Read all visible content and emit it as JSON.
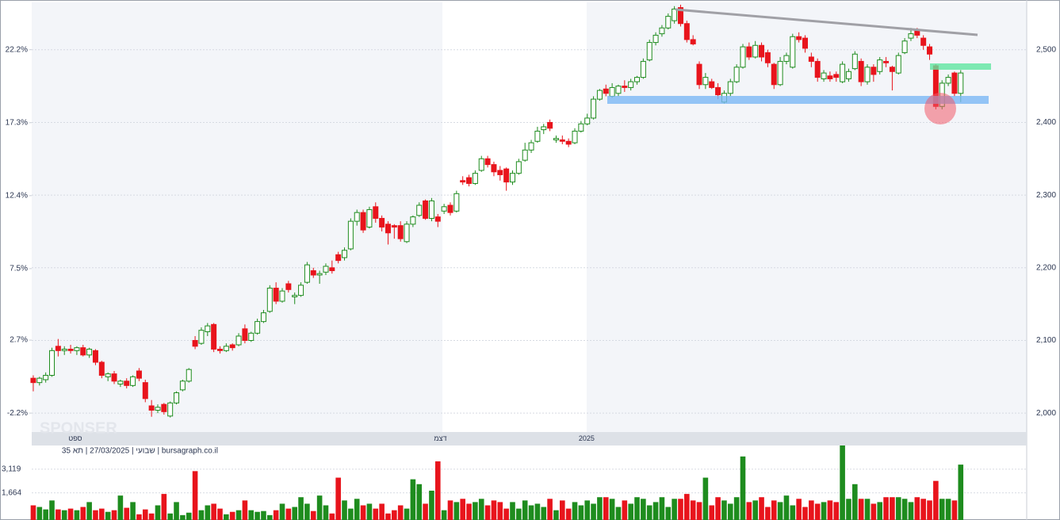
{
  "chart_data": [
    {
      "type": "candlestick",
      "watermark": "SPONSER",
      "xlim": [
        -0.25,
        159.6
      ],
      "xticks": [
        {
          "value": 6.75,
          "label": "ספט"
        },
        {
          "value": 65.4,
          "label": "דצמ"
        },
        {
          "value": 88.9,
          "label": "2025"
        }
      ],
      "ylim": [
        1974,
        2563
      ],
      "yticks": [
        {
          "value": 2000,
          "label": "2,000"
        },
        {
          "value": 2100,
          "label": "2,100"
        },
        {
          "value": 2200,
          "label": "2,200"
        },
        {
          "value": 2300,
          "label": "2,300"
        },
        {
          "value": 2400,
          "label": "2,400"
        },
        {
          "value": 2500,
          "label": "2,500"
        }
      ],
      "y2lim": [
        -3.47,
        25.27
      ],
      "y2ticks": [
        {
          "value": -2.2,
          "label": "-2.2%"
        },
        {
          "value": 2.7,
          "label": "2.7%"
        },
        {
          "value": 7.5,
          "label": "7.5%"
        },
        {
          "value": 12.4,
          "label": "12.4%"
        },
        {
          "value": 17.3,
          "label": "17.3%"
        },
        {
          "value": 22.2,
          "label": "22.2%"
        }
      ],
      "grid": true,
      "up_color": "#1e8c1e",
      "down_color": "#e8141c",
      "candles": [
        [
          2048,
          2052,
          2030,
          2042
        ],
        [
          2042,
          2050,
          2038,
          2048
        ],
        [
          2046,
          2056,
          2042,
          2052
        ],
        [
          2052,
          2090,
          2050,
          2086
        ],
        [
          2092,
          2102,
          2078,
          2086
        ],
        [
          2086,
          2092,
          2080,
          2088
        ],
        [
          2088,
          2094,
          2082,
          2086
        ],
        [
          2086,
          2092,
          2080,
          2090
        ],
        [
          2090,
          2094,
          2078,
          2080
        ],
        [
          2080,
          2090,
          2076,
          2088
        ],
        [
          2086,
          2088,
          2066,
          2070
        ],
        [
          2070,
          2072,
          2048,
          2052
        ],
        [
          2050,
          2056,
          2044,
          2054
        ],
        [
          2054,
          2058,
          2040,
          2044
        ],
        [
          2040,
          2046,
          2036,
          2044
        ],
        [
          2044,
          2048,
          2034,
          2038
        ],
        [
          2038,
          2052,
          2036,
          2050
        ],
        [
          2058,
          2062,
          2044,
          2048
        ],
        [
          2042,
          2046,
          2015,
          2020
        ],
        [
          2010,
          2018,
          1995,
          2004
        ],
        [
          2004,
          2012,
          2000,
          2008
        ],
        [
          2012,
          2014,
          1998,
          2002
        ],
        [
          1996,
          2016,
          1994,
          2014
        ],
        [
          2014,
          2030,
          2012,
          2028
        ],
        [
          2032,
          2046,
          2030,
          2044
        ],
        [
          2044,
          2062,
          2042,
          2060
        ],
        [
          2100,
          2106,
          2088,
          2092
        ],
        [
          2096,
          2118,
          2094,
          2114
        ],
        [
          2112,
          2124,
          2106,
          2120
        ],
        [
          2122,
          2124,
          2084,
          2088
        ],
        [
          2088,
          2092,
          2082,
          2086
        ],
        [
          2086,
          2096,
          2084,
          2092
        ],
        [
          2094,
          2096,
          2086,
          2090
        ],
        [
          2094,
          2110,
          2092,
          2106
        ],
        [
          2116,
          2122,
          2096,
          2100
        ],
        [
          2100,
          2112,
          2098,
          2110
        ],
        [
          2110,
          2130,
          2108,
          2126
        ],
        [
          2126,
          2142,
          2124,
          2138
        ],
        [
          2140,
          2176,
          2138,
          2172
        ],
        [
          2172,
          2180,
          2150,
          2154
        ],
        [
          2154,
          2172,
          2152,
          2168
        ],
        [
          2178,
          2182,
          2166,
          2170
        ],
        [
          2160,
          2166,
          2150,
          2162
        ],
        [
          2162,
          2180,
          2160,
          2176
        ],
        [
          2180,
          2208,
          2178,
          2204
        ],
        [
          2196,
          2200,
          2186,
          2190
        ],
        [
          2190,
          2196,
          2178,
          2192
        ],
        [
          2194,
          2206,
          2190,
          2202
        ],
        [
          2200,
          2210,
          2192,
          2196
        ],
        [
          2218,
          2222,
          2206,
          2210
        ],
        [
          2214,
          2228,
          2210,
          2224
        ],
        [
          2226,
          2268,
          2224,
          2264
        ],
        [
          2264,
          2280,
          2258,
          2276
        ],
        [
          2276,
          2280,
          2248,
          2252
        ],
        [
          2256,
          2284,
          2254,
          2280
        ],
        [
          2284,
          2290,
          2262,
          2268
        ],
        [
          2268,
          2272,
          2250,
          2256
        ],
        [
          2260,
          2264,
          2232,
          2248
        ],
        [
          2258,
          2260,
          2240,
          2256
        ],
        [
          2258,
          2264,
          2236,
          2240
        ],
        [
          2236,
          2264,
          2234,
          2260
        ],
        [
          2260,
          2272,
          2256,
          2270
        ],
        [
          2272,
          2290,
          2270,
          2286
        ],
        [
          2292,
          2294,
          2266,
          2268
        ],
        [
          2268,
          2296,
          2264,
          2292
        ],
        [
          2270,
          2274,
          2256,
          2264
        ],
        [
          2278,
          2288,
          2274,
          2284
        ],
        [
          2286,
          2290,
          2272,
          2276
        ],
        [
          2278,
          2306,
          2276,
          2302
        ],
        [
          2320,
          2326,
          2314,
          2318
        ],
        [
          2324,
          2328,
          2312,
          2316
        ],
        [
          2316,
          2334,
          2314,
          2330
        ],
        [
          2334,
          2354,
          2332,
          2350
        ],
        [
          2350,
          2354,
          2338,
          2342
        ],
        [
          2342,
          2346,
          2326,
          2332
        ],
        [
          2334,
          2340,
          2320,
          2328
        ],
        [
          2336,
          2338,
          2306,
          2318
        ],
        [
          2318,
          2334,
          2314,
          2330
        ],
        [
          2330,
          2350,
          2328,
          2346
        ],
        [
          2348,
          2372,
          2346,
          2362
        ],
        [
          2362,
          2376,
          2358,
          2372
        ],
        [
          2374,
          2394,
          2372,
          2388
        ],
        [
          2390,
          2398,
          2384,
          2394
        ],
        [
          2400,
          2404,
          2388,
          2392
        ],
        [
          2376,
          2382,
          2372,
          2378
        ],
        [
          2376,
          2382,
          2370,
          2374
        ],
        [
          2374,
          2378,
          2366,
          2370
        ],
        [
          2372,
          2392,
          2370,
          2388
        ],
        [
          2388,
          2402,
          2386,
          2398
        ],
        [
          2398,
          2412,
          2396,
          2406
        ],
        [
          2406,
          2436,
          2404,
          2432
        ],
        [
          2432,
          2446,
          2430,
          2444
        ],
        [
          2446,
          2452,
          2436,
          2440
        ],
        [
          2436,
          2454,
          2434,
          2448
        ],
        [
          2440,
          2452,
          2436,
          2450
        ],
        [
          2450,
          2458,
          2442,
          2448
        ],
        [
          2448,
          2460,
          2444,
          2456
        ],
        [
          2456,
          2464,
          2452,
          2462
        ],
        [
          2462,
          2488,
          2460,
          2484
        ],
        [
          2486,
          2514,
          2484,
          2510
        ],
        [
          2510,
          2524,
          2506,
          2520
        ],
        [
          2522,
          2534,
          2518,
          2530
        ],
        [
          2530,
          2550,
          2528,
          2546
        ],
        [
          2540,
          2560,
          2536,
          2556
        ],
        [
          2558,
          2562,
          2532,
          2536
        ],
        [
          2536,
          2540,
          2510,
          2514
        ],
        [
          2514,
          2520,
          2506,
          2508
        ],
        [
          2480,
          2484,
          2446,
          2452
        ],
        [
          2452,
          2468,
          2446,
          2462
        ],
        [
          2456,
          2460,
          2446,
          2448
        ],
        [
          2448,
          2454,
          2432,
          2438
        ],
        [
          2428,
          2444,
          2426,
          2440
        ],
        [
          2440,
          2460,
          2436,
          2456
        ],
        [
          2456,
          2480,
          2454,
          2476
        ],
        [
          2476,
          2508,
          2474,
          2504
        ],
        [
          2504,
          2510,
          2486,
          2490
        ],
        [
          2490,
          2512,
          2488,
          2506
        ],
        [
          2506,
          2510,
          2484,
          2490
        ],
        [
          2496,
          2500,
          2476,
          2482
        ],
        [
          2480,
          2482,
          2446,
          2452
        ],
        [
          2452,
          2490,
          2450,
          2484
        ],
        [
          2484,
          2496,
          2480,
          2492
        ],
        [
          2476,
          2522,
          2474,
          2518
        ],
        [
          2518,
          2524,
          2510,
          2514
        ],
        [
          2516,
          2520,
          2496,
          2502
        ],
        [
          2490,
          2496,
          2476,
          2484
        ],
        [
          2484,
          2488,
          2456,
          2462
        ],
        [
          2460,
          2472,
          2456,
          2468
        ],
        [
          2464,
          2470,
          2456,
          2460
        ],
        [
          2466,
          2470,
          2456,
          2462
        ],
        [
          2456,
          2484,
          2454,
          2480
        ],
        [
          2460,
          2474,
          2456,
          2470
        ],
        [
          2474,
          2498,
          2472,
          2494
        ],
        [
          2484,
          2488,
          2450,
          2456
        ],
        [
          2456,
          2480,
          2452,
          2476
        ],
        [
          2476,
          2480,
          2456,
          2466
        ],
        [
          2470,
          2490,
          2466,
          2486
        ],
        [
          2484,
          2490,
          2476,
          2482
        ],
        [
          2476,
          2478,
          2444,
          2470
        ],
        [
          2468,
          2496,
          2466,
          2492
        ],
        [
          2496,
          2516,
          2494,
          2512
        ],
        [
          2516,
          2530,
          2512,
          2522
        ],
        [
          2528,
          2530,
          2516,
          2520
        ],
        [
          2516,
          2520,
          2500,
          2506
        ],
        [
          2504,
          2508,
          2486,
          2494
        ],
        [
          2478,
          2480,
          2418,
          2422
        ],
        [
          2422,
          2458,
          2418,
          2454
        ],
        [
          2454,
          2466,
          2450,
          2462
        ],
        [
          2468,
          2470,
          2436,
          2440
        ],
        [
          2440,
          2472,
          2428,
          2468
        ]
      ]
    },
    {
      "type": "bar",
      "caption": "שבועי | 27/03/2025 | תא 35 | bursagraph.co.il",
      "ylim": [
        0,
        4574
      ],
      "yticks": [
        {
          "value": 1664,
          "label": "1,664"
        },
        {
          "value": 3119,
          "label": "3,119"
        }
      ],
      "grid": true,
      "values": [
        900,
        800,
        650,
        1200,
        650,
        600,
        700,
        600,
        800,
        1100,
        600,
        700,
        500,
        600,
        1500,
        750,
        1100,
        350,
        650,
        400,
        900,
        1600,
        400,
        1100,
        300,
        450,
        3000,
        600,
        900,
        1000,
        700,
        350,
        500,
        600,
        1200,
        600,
        500,
        550,
        300,
        600,
        1000,
        700,
        800,
        1400,
        1000,
        550,
        1500,
        900,
        400,
        2600,
        1200,
        700,
        1300,
        900,
        1000,
        700,
        1000,
        400,
        600,
        900,
        700,
        2500,
        2200,
        1000,
        1800,
        3600,
        600,
        1200,
        1100,
        1300,
        1000,
        1100,
        1300,
        900,
        1200,
        1100,
        700,
        1100,
        700,
        1200,
        900,
        1000,
        800,
        1300,
        600,
        1200,
        700,
        1100,
        900,
        1200,
        1000,
        1400,
        1400,
        1300,
        800,
        1200,
        1000,
        1400,
        1300,
        900,
        1100,
        1400,
        800,
        1300,
        1300,
        1600,
        1200,
        1100,
        2600,
        900,
        1400,
        1200,
        1000,
        1400,
        3900,
        1100,
        1200,
        1400,
        800,
        1200,
        1100,
        1500,
        900,
        1300,
        800,
        1200,
        1000,
        1100,
        1200,
        1100,
        4574,
        1300,
        2200,
        1300,
        1300,
        1000,
        1100,
        1400,
        1400,
        1400,
        1300,
        1100,
        1400,
        1300,
        1200,
        2400,
        1300,
        1300,
        1200,
        3400
      ]
    }
  ]
}
